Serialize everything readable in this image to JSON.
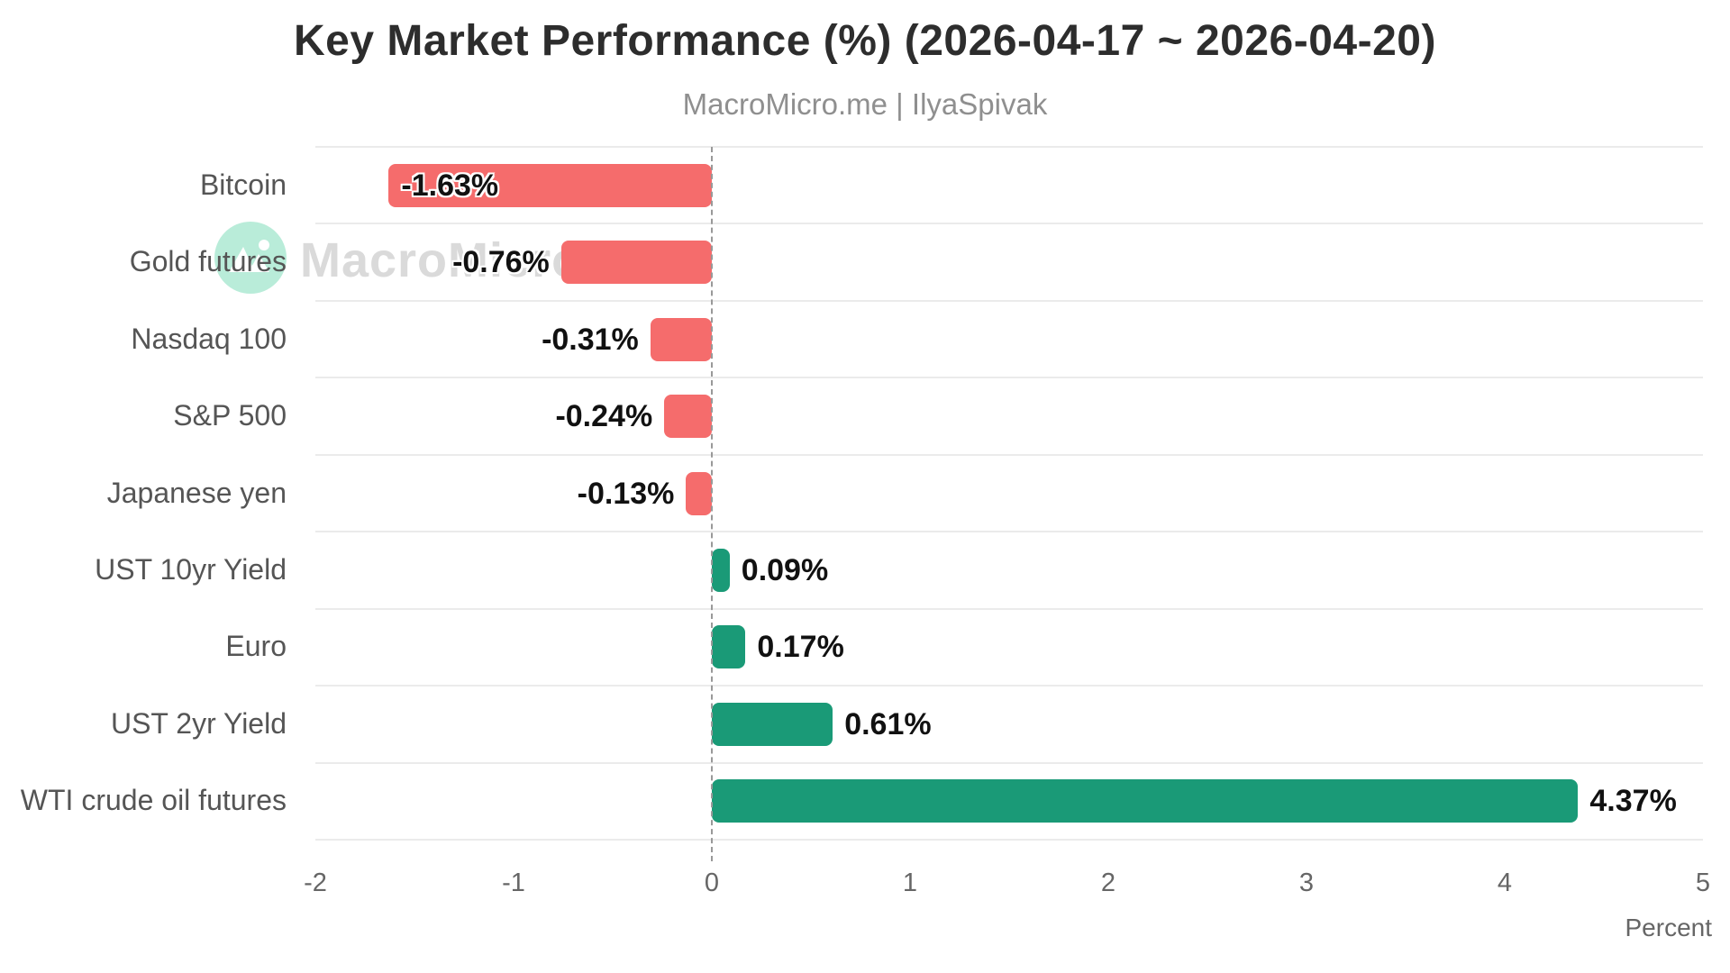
{
  "title": "Key Market Performance (%) (2026-04-17 ~ 2026-04-20)",
  "subtitle": "MacroMicro.me | IlyaSpivak",
  "watermark": {
    "brand": "MacroMicro",
    "logo_icon": "mountain-peaks-icon",
    "circle_color": "#b9ecd9"
  },
  "chart_data": {
    "type": "bar",
    "orientation": "horizontal",
    "categories": [
      "Bitcoin",
      "Gold futures",
      "Nasdaq 100",
      "S&P 500",
      "Japanese yen",
      "UST 10yr Yield",
      "Euro",
      "UST 2yr Yield",
      "WTI crude oil futures"
    ],
    "values": [
      -1.63,
      -0.76,
      -0.31,
      -0.24,
      -0.13,
      0.09,
      0.17,
      0.61,
      4.37
    ],
    "value_labels": [
      "-1.63%",
      "-0.76%",
      "-0.31%",
      "-0.24%",
      "-0.13%",
      "0.09%",
      "0.17%",
      "0.61%",
      "4.37%"
    ],
    "title": "Key Market Performance (%) (2026-04-17 ~ 2026-04-20)",
    "xlabel": "Percent",
    "ylabel": "",
    "xlim": [
      -2,
      5
    ],
    "xticks": [
      -2,
      -1,
      0,
      1,
      2,
      3,
      4,
      5
    ],
    "grid": "row-separators",
    "zero_line": "dashed",
    "legend": "none",
    "colors": {
      "positive": "#1a9a77",
      "negative": "#f56c6c",
      "separator": "#ebebeb",
      "zero_line": "#999999",
      "value_text": "#111111",
      "category_text": "#555555",
      "tick_text": "#666666"
    }
  }
}
